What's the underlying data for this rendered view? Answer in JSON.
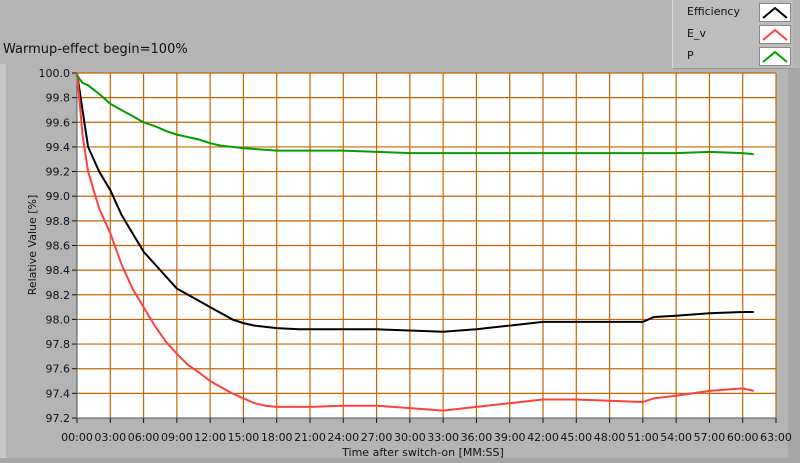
{
  "title": "Warmup-effect begin=100%",
  "legend": [
    {
      "label": "Efficiency",
      "color": "#000000"
    },
    {
      "label": "E_v",
      "color": "#ff4040"
    },
    {
      "label": "P",
      "color": "#00a000"
    }
  ],
  "chart_data": {
    "type": "line",
    "title": "Warmup-effect begin=100%",
    "xlabel": "Time after switch-on [MM:SS]",
    "ylabel": "Relative Value [%]",
    "xlim_minutes": [
      0,
      63
    ],
    "ylim": [
      97.2,
      100.0
    ],
    "x_ticks": [
      "00:00",
      "03:00",
      "06:00",
      "09:00",
      "12:00",
      "15:00",
      "18:00",
      "21:00",
      "24:00",
      "27:00",
      "30:00",
      "33:00",
      "36:00",
      "39:00",
      "42:00",
      "45:00",
      "48:00",
      "51:00",
      "54:00",
      "57:00",
      "60:00",
      "63:00"
    ],
    "y_ticks": [
      "97.2",
      "97.4",
      "97.6",
      "97.8",
      "98.0",
      "98.2",
      "98.4",
      "98.6",
      "98.8",
      "99.0",
      "99.2",
      "99.4",
      "99.6",
      "99.8",
      "100.0"
    ],
    "grid": true,
    "grid_color": "#c86400",
    "legend_position": "top-right",
    "x_unit": "minutes",
    "series": [
      {
        "name": "Efficiency",
        "color": "#000000",
        "x": [
          0,
          0.5,
          1,
          2,
          3,
          4,
          5,
          6,
          7,
          8,
          9,
          10,
          11,
          12,
          13,
          14,
          15,
          16,
          18,
          20,
          24,
          27,
          30,
          33,
          36,
          39,
          42,
          45,
          48,
          51,
          52,
          54,
          57,
          60,
          61
        ],
        "y": [
          100.0,
          99.7,
          99.4,
          99.2,
          99.05,
          98.85,
          98.7,
          98.55,
          98.45,
          98.35,
          98.25,
          98.2,
          98.15,
          98.1,
          98.05,
          98.0,
          97.97,
          97.95,
          97.93,
          97.92,
          97.92,
          97.92,
          97.91,
          97.9,
          97.92,
          97.95,
          97.98,
          97.98,
          97.98,
          97.98,
          98.02,
          98.03,
          98.05,
          98.06,
          98.06
        ]
      },
      {
        "name": "E_v",
        "color": "#ff4040",
        "x": [
          0,
          0.5,
          1,
          2,
          3,
          4,
          5,
          6,
          7,
          8,
          9,
          10,
          11,
          12,
          13,
          14,
          15,
          16,
          17,
          18,
          21,
          24,
          27,
          30,
          33,
          36,
          39,
          42,
          45,
          48,
          51,
          52,
          54,
          57,
          60,
          61
        ],
        "y": [
          100.0,
          99.5,
          99.2,
          98.9,
          98.7,
          98.45,
          98.25,
          98.1,
          97.95,
          97.82,
          97.72,
          97.63,
          97.57,
          97.5,
          97.45,
          97.4,
          97.36,
          97.32,
          97.3,
          97.29,
          97.29,
          97.3,
          97.3,
          97.28,
          97.26,
          97.29,
          97.32,
          97.35,
          97.35,
          97.34,
          97.33,
          97.36,
          97.38,
          97.42,
          97.44,
          97.42
        ]
      },
      {
        "name": "P",
        "color": "#00a000",
        "x": [
          0,
          0.5,
          1,
          2,
          3,
          4,
          5,
          6,
          7,
          8,
          9,
          10,
          11,
          12,
          13,
          14,
          15,
          18,
          21,
          24,
          27,
          30,
          33,
          36,
          42,
          48,
          54,
          57,
          60,
          61
        ],
        "y": [
          99.98,
          99.92,
          99.9,
          99.83,
          99.75,
          99.7,
          99.65,
          99.6,
          99.57,
          99.53,
          99.5,
          99.48,
          99.46,
          99.43,
          99.41,
          99.4,
          99.39,
          99.37,
          99.37,
          99.37,
          99.36,
          99.35,
          99.35,
          99.35,
          99.35,
          99.35,
          99.35,
          99.36,
          99.35,
          99.34
        ]
      }
    ]
  }
}
